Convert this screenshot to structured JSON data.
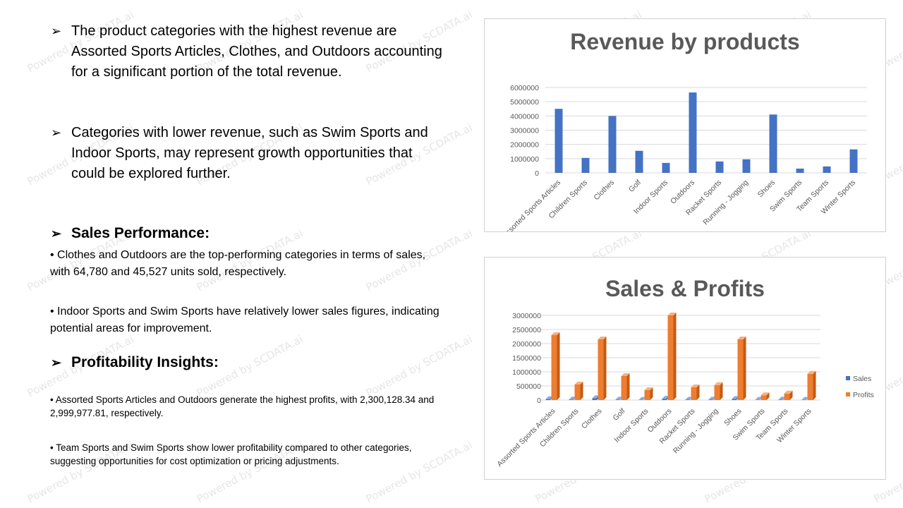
{
  "watermark": "Powered by SCDATA.ai",
  "bullets": [
    {
      "text": "The product categories with the highest revenue are Assorted Sports Articles, Clothes, and Outdoors accounting for a significant portion of the total revenue."
    },
    {
      "text": "Categories with lower revenue, such as Swim Sports and Indoor Sports, may represent growth opportunities that could be explored further."
    }
  ],
  "sales_performance": {
    "heading": "Sales Performance:",
    "points": [
      "Clothes and Outdoors are the top-performing categories in terms of sales, with 64,780 and 45,527 units sold, respectively.",
      "Indoor Sports and Swim Sports have relatively lower sales figures, indicating potential areas for improvement."
    ]
  },
  "profitability": {
    "heading": "Profitability Insights:",
    "points": [
      "Assorted Sports Articles and Outdoors generate the highest profits, with 2,300,128.34 and 2,999,977.81, respectively.",
      "Team Sports and Swim Sports show lower profitability compared to other categories, suggesting opportunities for cost optimization or pricing adjustments."
    ]
  },
  "chart_data": [
    {
      "type": "bar",
      "title": "Revenue by products",
      "categories": [
        "Assorted Sports Articles",
        "Children Sports",
        "Clothes",
        "Golf",
        "Indoor Sports",
        "Outdoors",
        "Racket Sports",
        "Running - Jogging",
        "Shoes",
        "Swim Sports",
        "Team Sports",
        "Winter Sports"
      ],
      "series": [
        {
          "values": [
            4500000,
            1050000,
            4000000,
            1550000,
            700000,
            5650000,
            800000,
            950000,
            4100000,
            300000,
            450000,
            1650000
          ],
          "color": "#4472c4"
        }
      ],
      "yticks": [
        "0",
        "1000000",
        "2000000",
        "3000000",
        "4000000",
        "5000000",
        "6000000"
      ],
      "ylim": [
        0,
        6000000
      ],
      "grid": true
    },
    {
      "type": "bar",
      "title": "Sales & Profits",
      "categories": [
        "Assorted Sports Articles",
        "Children Sports",
        "Clothes",
        "Golf",
        "Indoor Sports",
        "Outdoors",
        "Racket Sports",
        "Running - Jogging",
        "Shoes",
        "Swim Sports",
        "Team Sports",
        "Winter Sports"
      ],
      "series": [
        {
          "name": "Sales",
          "values": [
            35000,
            20000,
            64780,
            15000,
            10000,
            45527,
            12000,
            20000,
            40000,
            8000,
            15000,
            10000
          ],
          "color": "#4472c4"
        },
        {
          "name": "Profits",
          "values": [
            2300128.34,
            550000,
            2150000,
            850000,
            350000,
            2999977.81,
            450000,
            530000,
            2150000,
            170000,
            230000,
            930000
          ],
          "color": "#ed7d31"
        }
      ],
      "yticks": [
        "0",
        "500000",
        "1000000",
        "1500000",
        "2000000",
        "2500000",
        "3000000"
      ],
      "ylim": [
        0,
        3000000
      ],
      "grid": true,
      "legend": "right"
    }
  ]
}
